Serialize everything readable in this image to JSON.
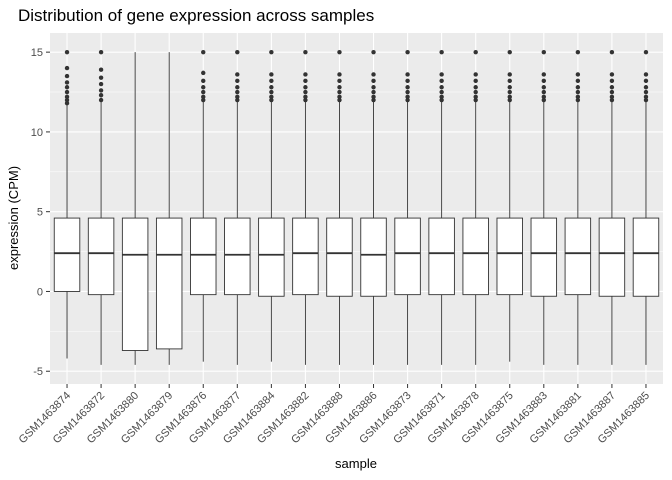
{
  "colors": {
    "panel_background": "#EBEBEB",
    "grid_major": "#FFFFFF",
    "box_fill": "#FFFFFF",
    "box_stroke": "#333333",
    "outlier": "#333333",
    "tick_text": "#4D4D4D"
  },
  "chart_data": {
    "type": "box",
    "title": "Distribution of gene expression across samples",
    "xlabel": "sample",
    "ylabel": "expression (CPM)",
    "ylim": [
      -5.8,
      16.2
    ],
    "y_ticks": [
      -5,
      0,
      5,
      10,
      15
    ],
    "grid": true,
    "legend": "none",
    "categories": [
      "GSM1463874",
      "GSM1463872",
      "GSM1463880",
      "GSM1463879",
      "GSM1463876",
      "GSM1463877",
      "GSM1463884",
      "GSM1463882",
      "GSM1463888",
      "GSM1463886",
      "GSM1463873",
      "GSM1463871",
      "GSM1463878",
      "GSM1463875",
      "GSM1463883",
      "GSM1463881",
      "GSM1463887",
      "GSM1463885"
    ],
    "boxes": [
      {
        "min": -4.2,
        "q1": 0.0,
        "median": 2.4,
        "q3": 4.6,
        "max": 11.7,
        "outliers": [
          11.8,
          12.0,
          12.2,
          12.5,
          12.8,
          13.1,
          13.5,
          14.0,
          15.0
        ]
      },
      {
        "min": -4.6,
        "q1": -0.2,
        "median": 2.4,
        "q3": 4.6,
        "max": 11.9,
        "outliers": [
          12.0,
          12.3,
          12.6,
          13.0,
          13.4,
          13.9,
          15.0
        ]
      },
      {
        "min": -4.6,
        "q1": -3.7,
        "median": 2.3,
        "q3": 4.6,
        "max": 15.0,
        "outliers": []
      },
      {
        "min": -4.6,
        "q1": -3.6,
        "median": 2.3,
        "q3": 4.6,
        "max": 15.0,
        "outliers": []
      },
      {
        "min": -4.4,
        "q1": -0.2,
        "median": 2.3,
        "q3": 4.6,
        "max": 11.9,
        "outliers": [
          12.0,
          12.2,
          12.5,
          12.8,
          13.2,
          13.7,
          15.0
        ]
      },
      {
        "min": -4.6,
        "q1": -0.2,
        "median": 2.3,
        "q3": 4.6,
        "max": 11.9,
        "outliers": [
          12.0,
          12.2,
          12.5,
          12.8,
          13.2,
          13.6,
          15.0
        ]
      },
      {
        "min": -4.4,
        "q1": -0.3,
        "median": 2.3,
        "q3": 4.6,
        "max": 11.9,
        "outliers": [
          12.0,
          12.2,
          12.5,
          12.8,
          13.2,
          13.6,
          15.0
        ]
      },
      {
        "min": -4.6,
        "q1": -0.2,
        "median": 2.4,
        "q3": 4.6,
        "max": 11.9,
        "outliers": [
          12.0,
          12.2,
          12.5,
          12.8,
          13.2,
          13.6,
          15.0
        ]
      },
      {
        "min": -4.6,
        "q1": -0.3,
        "median": 2.4,
        "q3": 4.6,
        "max": 11.9,
        "outliers": [
          12.0,
          12.2,
          12.5,
          12.8,
          13.2,
          13.6,
          15.0
        ]
      },
      {
        "min": -4.6,
        "q1": -0.3,
        "median": 2.3,
        "q3": 4.6,
        "max": 11.9,
        "outliers": [
          12.0,
          12.2,
          12.5,
          12.8,
          13.2,
          13.6,
          15.0
        ]
      },
      {
        "min": -4.6,
        "q1": -0.2,
        "median": 2.4,
        "q3": 4.6,
        "max": 11.9,
        "outliers": [
          12.0,
          12.2,
          12.5,
          12.8,
          13.2,
          13.6,
          15.0
        ]
      },
      {
        "min": -4.6,
        "q1": -0.2,
        "median": 2.4,
        "q3": 4.6,
        "max": 11.9,
        "outliers": [
          12.0,
          12.2,
          12.5,
          12.8,
          13.2,
          13.6,
          15.0
        ]
      },
      {
        "min": -4.6,
        "q1": -0.2,
        "median": 2.4,
        "q3": 4.6,
        "max": 11.9,
        "outliers": [
          12.0,
          12.2,
          12.5,
          12.8,
          13.2,
          13.6,
          15.0
        ]
      },
      {
        "min": -4.4,
        "q1": -0.2,
        "median": 2.4,
        "q3": 4.6,
        "max": 11.9,
        "outliers": [
          12.0,
          12.2,
          12.5,
          12.8,
          13.2,
          13.6,
          15.0
        ]
      },
      {
        "min": -4.6,
        "q1": -0.3,
        "median": 2.4,
        "q3": 4.6,
        "max": 11.9,
        "outliers": [
          12.0,
          12.2,
          12.5,
          12.8,
          13.2,
          13.6,
          15.0
        ]
      },
      {
        "min": -4.6,
        "q1": -0.2,
        "median": 2.4,
        "q3": 4.6,
        "max": 11.9,
        "outliers": [
          12.0,
          12.2,
          12.5,
          12.8,
          13.2,
          13.6,
          15.0
        ]
      },
      {
        "min": -4.6,
        "q1": -0.3,
        "median": 2.4,
        "q3": 4.6,
        "max": 11.9,
        "outliers": [
          12.0,
          12.2,
          12.5,
          12.8,
          13.2,
          13.6,
          15.0
        ]
      },
      {
        "min": -4.6,
        "q1": -0.3,
        "median": 2.4,
        "q3": 4.6,
        "max": 11.9,
        "outliers": [
          12.0,
          12.2,
          12.5,
          12.8,
          13.2,
          13.6,
          15.0
        ]
      }
    ]
  }
}
